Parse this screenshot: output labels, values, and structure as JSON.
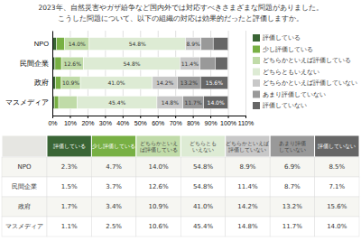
{
  "chart_data": {
    "type": "bar",
    "orientation": "horizontal",
    "stacked": true,
    "title": "2023年、自然災害やガザ紛争など国内外では対応すべきさまざまな問題がありました。",
    "subtitle": "こうした問題について、以下の組織の対応は効果的だったと評価しますか。",
    "categories": [
      "NPO",
      "民間企業",
      "政府",
      "マスメディア"
    ],
    "series": [
      {
        "name": "評価している",
        "color": "#3a6535",
        "values": [
          2.3,
          1.5,
          1.7,
          1.1
        ],
        "value_labels": [
          "2.3%",
          "1.5%",
          "1.7%",
          "1.1%"
        ]
      },
      {
        "name": "少し評価している",
        "color": "#78b044",
        "values": [
          4.7,
          3.7,
          3.4,
          2.5
        ],
        "value_labels": [
          "4.7%",
          "3.7%",
          "3.4%",
          "2.5%"
        ]
      },
      {
        "name": "どちらかといえば評価している",
        "color": "#c0dba8",
        "values": [
          14.0,
          12.6,
          10.9,
          10.6
        ],
        "value_labels": [
          "14.0%",
          "12.6%",
          "10.9%",
          "10.6%"
        ]
      },
      {
        "name": "どちらともいえない",
        "color": "#ddebd4",
        "values": [
          54.8,
          54.8,
          41.0,
          45.4
        ],
        "value_labels": [
          "54.8%",
          "54.8%",
          "41.0%",
          "45.4%"
        ]
      },
      {
        "name": "どちらかといえば評価していない",
        "color": "#c8c8c8",
        "values": [
          8.9,
          11.4,
          14.2,
          14.8
        ],
        "value_labels": [
          "8.9%",
          "11.4%",
          "14.2%",
          "14.8%"
        ]
      },
      {
        "name": "あまり評価していない",
        "color": "#999999",
        "values": [
          6.9,
          8.7,
          13.2,
          11.7
        ],
        "value_labels": [
          "6.9%",
          "8.7%",
          "13.2%",
          "11.7%"
        ]
      },
      {
        "name": "評価していない",
        "color": "#666666",
        "values": [
          8.5,
          7.1,
          15.6,
          14.0
        ],
        "value_labels": [
          "8.5%",
          "7.1%",
          "15.6%",
          "14.0%"
        ]
      }
    ],
    "xlim": [
      0,
      110
    ],
    "xticks": [
      {
        "value": 0,
        "label": "0%"
      },
      {
        "value": 10,
        "label": "10%"
      },
      {
        "value": 20,
        "label": "20%"
      },
      {
        "value": 30,
        "label": "30%"
      },
      {
        "value": 40,
        "label": "40%"
      },
      {
        "value": 50,
        "label": "50%"
      },
      {
        "value": 60,
        "label": "60%"
      },
      {
        "value": 70,
        "label": "70%"
      },
      {
        "value": 80,
        "label": "80%"
      },
      {
        "value": 90,
        "label": "90%"
      },
      {
        "value": 100,
        "label": "100%"
      },
      {
        "value": 110,
        "label": "110%"
      }
    ],
    "grid": true,
    "data_labels": true,
    "legend": "right"
  }
}
